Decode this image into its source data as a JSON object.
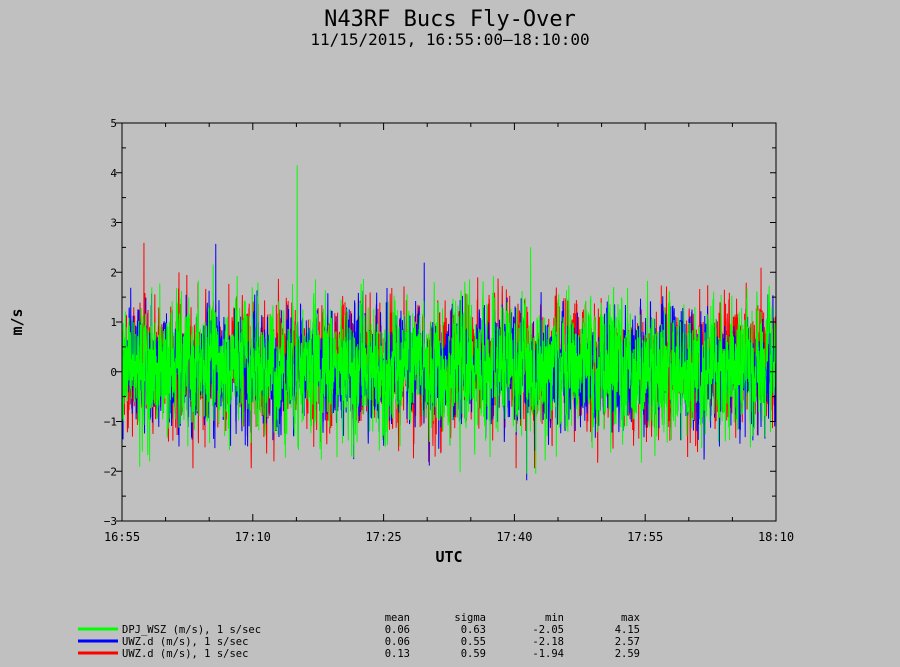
{
  "chart_data": {
    "type": "line",
    "title": "N43RF Bucs Fly-Over",
    "subtitle": "11/15/2015, 16:55:00–18:10:00",
    "xlabel": "UTC",
    "ylabel": "m/s",
    "x_tick_labels": [
      "16:55",
      "17:10",
      "17:25",
      "17:40",
      "17:55",
      "18:10"
    ],
    "x_range": [
      "16:55:00",
      "18:10:00"
    ],
    "ylim": [
      -3,
      5
    ],
    "y_ticks": [
      "5",
      "4",
      "3",
      "2",
      "1",
      "0",
      "−1",
      "−2",
      "−3"
    ],
    "grid": false,
    "legend_position": "bottom-left",
    "stats_headers": [
      "mean",
      "sigma",
      "min",
      "max"
    ],
    "series": [
      {
        "name": "UWZ.d (m/s), 1 s/sec",
        "color": "#ff0000",
        "stats": [
          "0.13",
          "0.59",
          "-1.94",
          "2.59"
        ],
        "mean": 0.13,
        "sigma": 0.59,
        "min": -1.94,
        "max": 2.59
      },
      {
        "name": "UWZ.d (m/s), 1 s/sec",
        "color": "#0000ff",
        "stats": [
          "0.06",
          "0.55",
          "-2.18",
          "2.57"
        ],
        "mean": 0.06,
        "sigma": 0.55,
        "min": -2.18,
        "max": 2.57
      },
      {
        "name": "DPJ_WSZ (m/s), 1 s/sec",
        "color": "#00ff00",
        "stats": [
          "0.06",
          "0.63",
          "-2.05",
          "4.15"
        ],
        "mean": 0.06,
        "sigma": 0.63,
        "min": -2.05,
        "max": 4.15
      }
    ],
    "legend_order": [
      2,
      1,
      0
    ]
  }
}
